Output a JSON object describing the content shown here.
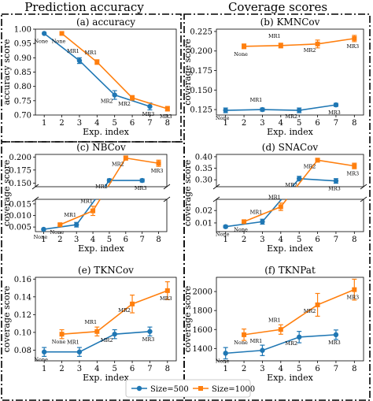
{
  "section_titles": {
    "left": "Prediction accuracy",
    "right": "Coverage scores"
  },
  "colors": {
    "size500": "#1f77b4",
    "size1000": "#ff7f0e"
  },
  "legend": {
    "entries": [
      "Size=500",
      "Size=1000"
    ]
  },
  "chart_data": [
    {
      "id": "a",
      "type": "line",
      "title": "(a) accuracy",
      "xlabel": "Exp. index",
      "ylabel": "accuracy score",
      "ylim": [
        0.7,
        1.0
      ],
      "yticks": [
        "0.70",
        "0.75",
        "0.80",
        "0.85",
        "0.90",
        "0.95",
        "1.00"
      ],
      "x_ticks": [
        1,
        2,
        3,
        4,
        5,
        6,
        7,
        8
      ],
      "series": [
        {
          "name": "Size=500",
          "x": [
            1,
            3,
            5,
            7
          ],
          "values": [
            0.985,
            0.89,
            0.77,
            0.73
          ],
          "errors": [
            0,
            0.01,
            0.015,
            0.012
          ],
          "point_labels": [
            "None",
            "MR1",
            "MR2",
            "MR3"
          ]
        },
        {
          "name": "Size=1000",
          "x": [
            2,
            4,
            6,
            8
          ],
          "values": [
            0.985,
            0.885,
            0.76,
            0.722
          ],
          "errors": [
            0,
            0.008,
            0.008,
            0.008
          ],
          "point_labels": [
            "None",
            "MR1",
            "MR2",
            "MR3"
          ]
        }
      ]
    },
    {
      "id": "b",
      "type": "line",
      "title": "(b) KMNCov",
      "xlabel": "Exp. index",
      "ylabel": "coverage score",
      "ylim": [
        0.118,
        0.228
      ],
      "yticks": [
        "0.125",
        "0.150",
        "0.175",
        "0.200",
        "0.225"
      ],
      "x_ticks": [
        1,
        2,
        3,
        4,
        5,
        6,
        7,
        8
      ],
      "series": [
        {
          "name": "Size=500",
          "x": [
            1,
            3,
            5,
            7
          ],
          "values": [
            0.124,
            0.125,
            0.124,
            0.131
          ],
          "errors": [
            0.003,
            0.002,
            0.003,
            0.002
          ],
          "point_labels": [
            "None",
            "MR1",
            "MR2",
            "MR3"
          ]
        },
        {
          "name": "Size=1000",
          "x": [
            2,
            4,
            6,
            8
          ],
          "values": [
            0.206,
            0.207,
            0.209,
            0.216
          ],
          "errors": [
            0.003,
            0.003,
            0.005,
            0.004
          ],
          "point_labels": [
            "None",
            "MR1",
            "MR2",
            "MR3"
          ]
        }
      ]
    },
    {
      "id": "c",
      "type": "line",
      "title": "(c) NBCov",
      "xlabel": "Exp. index",
      "ylabel": "coverage score",
      "broken_axis": {
        "upper_ylim": [
          0.143,
          0.205
        ],
        "upper_yticks": [
          "0.150",
          "0.175",
          "0.200"
        ],
        "lower_ylim": [
          0.003,
          0.017
        ],
        "lower_yticks": [
          "0.005",
          "0.010",
          "0.015"
        ]
      },
      "x_ticks": [
        1,
        2,
        3,
        4,
        5,
        6,
        7,
        8
      ],
      "series": [
        {
          "name": "Size=500",
          "x": [
            1,
            3,
            5,
            7
          ],
          "values": [
            0.004,
            0.006,
            0.155,
            0.155
          ],
          "errors": [
            0,
            0.001,
            0.003,
            0.003
          ],
          "point_labels": [
            "None",
            "MR1",
            "MR2",
            "MR3"
          ]
        },
        {
          "name": "Size=1000",
          "x": [
            2,
            4,
            6,
            8
          ],
          "values": [
            0.006,
            0.012,
            0.198,
            0.188
          ],
          "errors": [
            0.0005,
            0.002,
            0.004,
            0.006
          ],
          "point_labels": [
            "None",
            "MR1",
            "MR2",
            "MR3"
          ]
        }
      ]
    },
    {
      "id": "d",
      "type": "line",
      "title": "(d) SNACov",
      "xlabel": "Exp. index",
      "ylabel": "coverage score",
      "broken_axis": {
        "upper_ylim": [
          0.27,
          0.41
        ],
        "upper_yticks": [
          "0.30",
          "0.35",
          "0.40"
        ],
        "lower_ylim": [
          0.003,
          0.029
        ],
        "lower_yticks": [
          "0.01",
          "0.02"
        ]
      },
      "x_ticks": [
        1,
        2,
        3,
        4,
        5,
        6,
        7,
        8
      ],
      "series": [
        {
          "name": "Size=500",
          "x": [
            1,
            3,
            5,
            7
          ],
          "values": [
            0.007,
            0.011,
            0.305,
            0.295
          ],
          "errors": [
            0.001,
            0.002,
            0.01,
            0.01
          ],
          "point_labels": [
            "None",
            "MR1",
            "MR2",
            "MR3"
          ]
        },
        {
          "name": "Size=1000",
          "x": [
            2,
            4,
            6,
            8
          ],
          "values": [
            0.011,
            0.023,
            0.385,
            0.36
          ],
          "errors": [
            0.001,
            0.003,
            0.008,
            0.012
          ],
          "point_labels": [
            "None",
            "MR1",
            "MR2",
            "MR3"
          ]
        }
      ]
    },
    {
      "id": "e",
      "type": "line",
      "title": "(e) TKNCov",
      "xlabel": "Exp. index",
      "ylabel": "coverage score",
      "ylim": [
        0.068,
        0.162
      ],
      "yticks": [
        "0.08",
        "0.10",
        "0.12",
        "0.14",
        "0.16"
      ],
      "x_ticks": [
        1,
        2,
        3,
        4,
        5,
        6,
        7,
        8
      ],
      "series": [
        {
          "name": "Size=500",
          "x": [
            1,
            3,
            5,
            7
          ],
          "values": [
            0.078,
            0.078,
            0.098,
            0.101
          ],
          "errors": [
            0.005,
            0.005,
            0.005,
            0.005
          ],
          "point_labels": [
            "None",
            "MR1",
            "MR2",
            "MR3"
          ]
        },
        {
          "name": "Size=1000",
          "x": [
            2,
            4,
            6,
            8
          ],
          "values": [
            0.098,
            0.101,
            0.132,
            0.147
          ],
          "errors": [
            0.005,
            0.005,
            0.01,
            0.01
          ],
          "point_labels": [
            "None",
            "MR1",
            "MR2",
            "MR3"
          ]
        }
      ]
    },
    {
      "id": "f",
      "type": "line",
      "title": "(f) TKNPat",
      "xlabel": "Exp. index",
      "ylabel": "coverage score",
      "ylim": [
        1270,
        2150
      ],
      "yticks": [
        "1400",
        "1600",
        "1800",
        "2000"
      ],
      "x_ticks": [
        1,
        2,
        3,
        4,
        5,
        6,
        7,
        8
      ],
      "series": [
        {
          "name": "Size=500",
          "x": [
            1,
            3,
            5,
            7
          ],
          "values": [
            1350,
            1380,
            1520,
            1545
          ],
          "errors": [
            60,
            55,
            60,
            50
          ],
          "point_labels": [
            "None",
            "MR1",
            "MR2",
            "MR3"
          ]
        },
        {
          "name": "Size=1000",
          "x": [
            2,
            4,
            6,
            8
          ],
          "values": [
            1545,
            1600,
            1860,
            2020
          ],
          "errors": [
            60,
            50,
            120,
            110
          ],
          "point_labels": [
            "None",
            "MR1",
            "MR2",
            "MR3"
          ]
        }
      ]
    }
  ]
}
